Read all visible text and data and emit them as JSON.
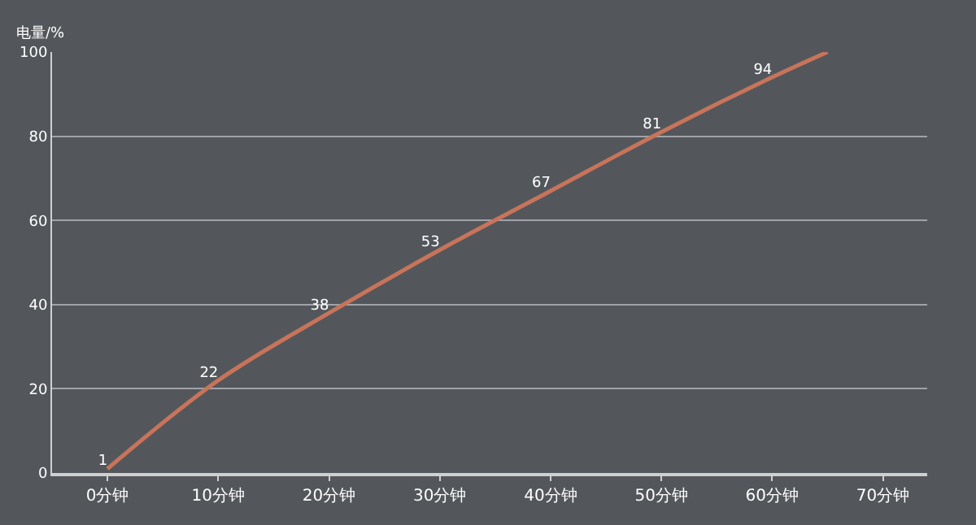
{
  "chart_data": {
    "type": "line",
    "ylabel": "电量/%",
    "x": [
      0,
      10,
      20,
      30,
      40,
      50,
      60,
      65
    ],
    "series": [
      {
        "color": "#c8745a",
        "values": [
          1,
          22,
          38,
          53,
          67,
          81,
          94,
          100
        ],
        "value_labels": [
          "1",
          "22",
          "38",
          "53",
          "67",
          "81",
          "94",
          null
        ]
      }
    ],
    "xlim": [
      -5,
      74
    ],
    "xticks": [
      {
        "value": 0,
        "label": "0分钟"
      },
      {
        "value": 10,
        "label": "10分钟"
      },
      {
        "value": 20,
        "label": "20分钟"
      },
      {
        "value": 30,
        "label": "30分钟"
      },
      {
        "value": 40,
        "label": "40分钟"
      },
      {
        "value": 50,
        "label": "50分钟"
      },
      {
        "value": 60,
        "label": "60分钟"
      },
      {
        "value": 70,
        "label": "70分钟"
      }
    ],
    "ylim": [
      0,
      100
    ],
    "yticks": [
      0,
      20,
      40,
      60,
      80,
      100
    ],
    "grid": "y",
    "marker": "none",
    "line_style": "solid",
    "legend": false
  }
}
